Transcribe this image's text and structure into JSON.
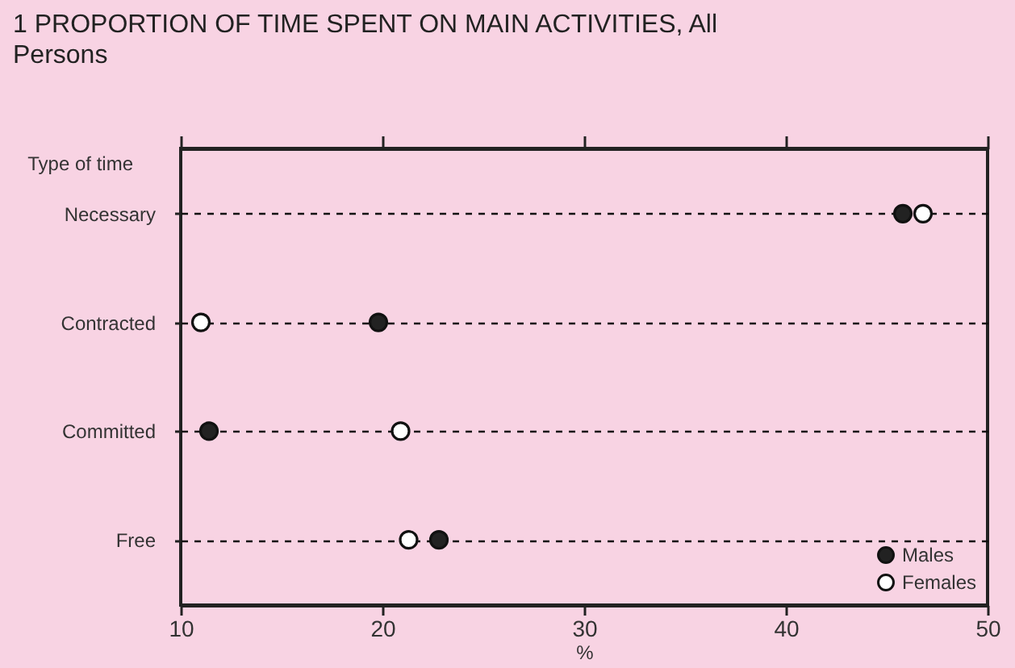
{
  "chart_data": {
    "type": "scatter",
    "title": "1 PROPORTION OF TIME SPENT ON MAIN ACTIVITIES, All Persons",
    "xlabel": "%",
    "ylabel": "Type of time",
    "categories": [
      "Necessary",
      "Contracted",
      "Committed",
      "Free"
    ],
    "orientation": "horizontal",
    "series": [
      {
        "name": "Males",
        "color": "#222222",
        "values": [
          45.8,
          19.8,
          11.4,
          22.8
        ]
      },
      {
        "name": "Females",
        "color": "#ffffff",
        "values": [
          46.8,
          11.0,
          20.9,
          21.3
        ]
      }
    ],
    "xlim": [
      10,
      50
    ],
    "xticks": [
      10,
      20,
      30,
      40,
      50
    ],
    "grid": "y",
    "line_style": "dashed",
    "marker": "circle",
    "legend": "bottom right"
  }
}
